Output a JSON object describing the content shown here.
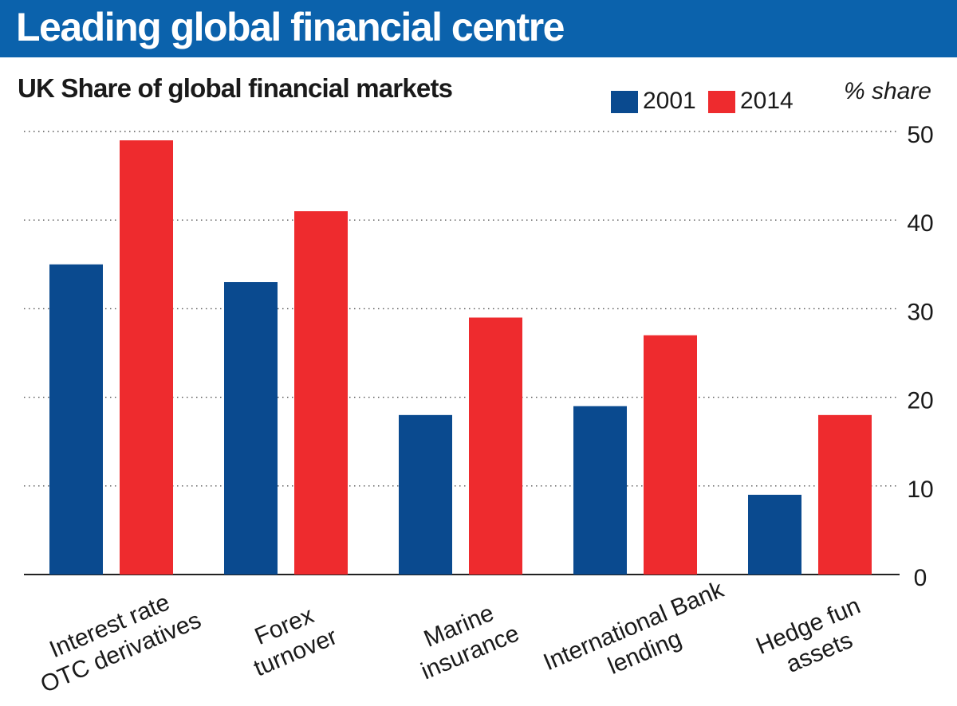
{
  "banner": {
    "title": "Leading global financial centre"
  },
  "chart_data": {
    "type": "bar",
    "title": "Leading global financial centre",
    "subtitle": "UK Share of global financial markets",
    "ylabel": "% share",
    "ylim": [
      0,
      50
    ],
    "yticks": [
      0,
      10,
      20,
      30,
      40,
      50
    ],
    "grid": true,
    "legend_position": "top-right",
    "categories": [
      [
        "Interest rate",
        "OTC derivatives"
      ],
      [
        "Forex",
        "turnover"
      ],
      [
        "Marine",
        "insurance"
      ],
      [
        "International Bank",
        "lending"
      ],
      [
        "Hedge fun",
        "assets"
      ]
    ],
    "series": [
      {
        "name": "2001",
        "color": "#0a4a8f",
        "values": [
          35,
          33,
          18,
          19,
          9
        ]
      },
      {
        "name": "2014",
        "color": "#ee2b2e",
        "values": [
          49,
          41,
          29,
          27,
          18
        ]
      }
    ]
  }
}
